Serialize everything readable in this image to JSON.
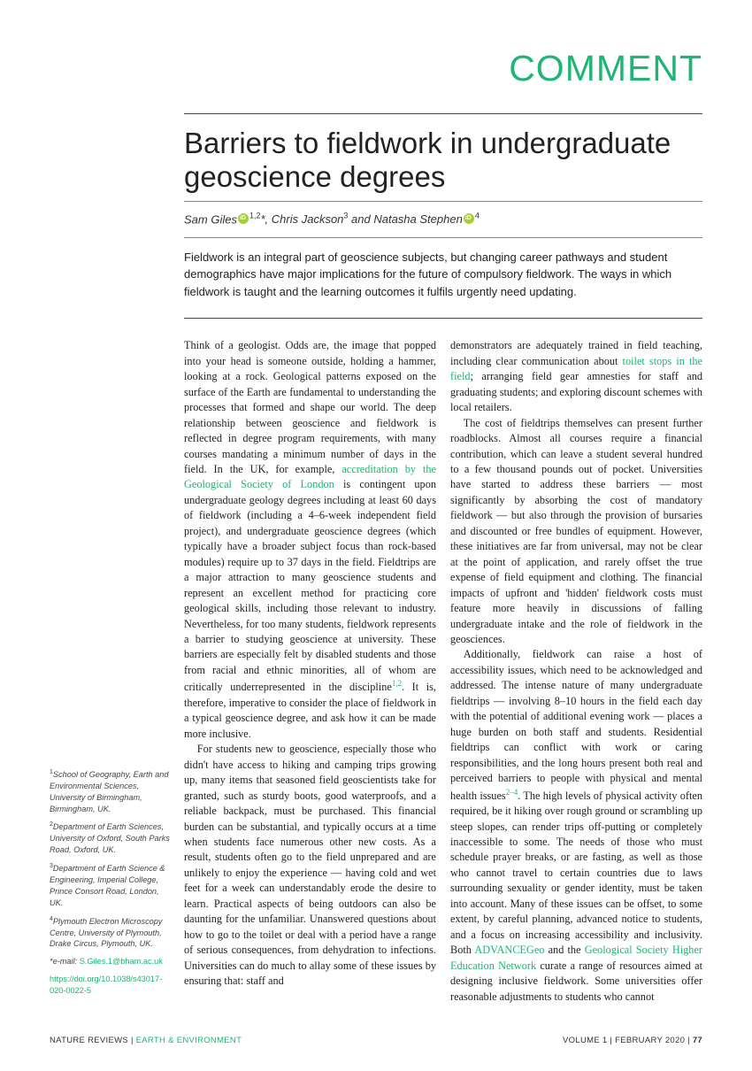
{
  "section_label": "COMMENT",
  "title": "Barriers to fieldwork in undergraduate geoscience degrees",
  "authors_html": "Sam Giles|ORCID|<sup>1,2</sup>*, Chris Jackson<sup>3</sup> and Natasha Stephen|ORCID|<sup>4</sup>",
  "abstract": "Fieldwork is an integral part of geoscience subjects, but changing career pathways and student demographics have major implications for the future of compulsory fieldwork. The ways in which fieldwork is taught and the learning outcomes it fulfils urgently need updating.",
  "col1": {
    "p1_a": "Think of a geologist. Odds are, the image that popped into your head is someone outside, holding a hammer, looking at a rock. Geological patterns exposed on the surface of the Earth are fundamental to understanding the processes that formed and shape our world. The deep relationship between geoscience and fieldwork is reflected in degree program requirements, with many courses mandating a minimum number of days in the field. In the UK, for example, ",
    "link1": "accreditation by the Geological Society of London",
    "p1_b": " is contingent upon undergraduate geology degrees including at least 60 days of fieldwork (including a 4–6-week independent field project), and undergraduate geoscience degrees (which typically have a broader subject focus than rock-based modules) require up to 37 days in the field. Fieldtrips are a major attraction to many geoscience students and represent an excellent method for practicing core geological skills, including those relevant to industry. Nevertheless, for too many students, fieldwork represents a barrier to studying geoscience at university. These barriers are especially felt by disabled students and those from racial and ethnic minorities, all of whom are critically underrepresented in the discipline",
    "ref1": "1,2",
    "p1_c": ". It is, therefore, imperative to consider the place of fieldwork in a typical geoscience degree, and ask how it can be made more inclusive.",
    "p2": "For students new to geoscience, especially those who didn't have access to hiking and camping trips growing up, many items that seasoned field geoscientists take for granted, such as sturdy boots, good waterproofs, and a reliable backpack, must be purchased. This financial burden can be substantial, and typically occurs at a time when students face numerous other new costs. As a result, students often go to the field unprepared and are unlikely to enjoy the experience — having cold and wet feet for a week can understandably erode the desire to learn. Practical aspects of being outdoors can also be daunting for the unfamiliar. Unanswered questions about how to go to the toilet or deal with a period have a range of serious consequences, from dehydration to infections. Universities can do much to allay some of these issues by ensuring that: staff and"
  },
  "col2": {
    "p1_a": "demonstrators are adequately trained in field teaching, including clear communication about ",
    "link1": "toilet stops in the field",
    "p1_b": "; arranging field gear amnesties for staff and graduating students; and exploring discount schemes with local retailers.",
    "p2": "The cost of fieldtrips themselves can present further roadblocks. Almost all courses require a financial contribution, which can leave a student several hundred to a few thousand pounds out of pocket. Universities have started to address these barriers — most significantly by absorbing the cost of mandatory fieldwork — but also through the provision of bursaries and discounted or free bundles of equipment. However, these initiatives are far from universal, may not be clear at the point of application, and rarely offset the true expense of field equipment and clothing. The financial impacts of upfront and 'hidden' fieldwork costs must feature more heavily in discussions of falling undergraduate intake and the role of fieldwork in the geosciences.",
    "p3_a": "Additionally, fieldwork can raise a host of accessibility issues, which need to be acknowledged and addressed. The intense nature of many undergraduate fieldtrips — involving 8–10 hours in the field each day with the potential of additional evening work — places a huge burden on both staff and students. Residential fieldtrips can conflict with work or caring responsibilities, and the long hours present both real and perceived barriers to people with physical and mental health issues",
    "ref1": "2–4",
    "p3_b": ". The high levels of physical activity often required, be it hiking over rough ground or scrambling up steep slopes, can render trips off-putting or completely inaccessible to some. The needs of those who must schedule prayer breaks, or are fasting, as well as those who cannot travel to certain countries due to laws surrounding sexuality or gender identity, must be taken into account. Many of these issues can be offset, to some extent, by careful planning, advanced notice to students, and a focus on increasing accessibility and inclusivity. Both ",
    "link2": "ADVANCEGeo",
    "p3_c": " and the ",
    "link3": "Geological Society Higher Education Network",
    "p3_d": " curate a range of resources aimed at designing inclusive fieldwork. Some universities offer reasonable adjustments to students who cannot"
  },
  "affiliations": {
    "a1": "School of Geography, Earth and Environmental Sciences, University of Birmingham, Birmingham, UK.",
    "a2": "Department of Earth Sciences, University of Oxford, South Parks Road, Oxford, UK.",
    "a3": "Department of Earth Science & Engineering, Imperial College, Prince Consort Road, London, UK.",
    "a4": "Plymouth Electron Microscopy Centre, University of Plymouth, Drake Circus, Plymouth, UK.",
    "email_label": "*e-mail: ",
    "email": "S.Giles.1@bham.ac.uk",
    "doi": "https://doi.org/10.1038/s43017-020-0022-5"
  },
  "footer": {
    "journal": "NATURE REVIEWS | ",
    "section": "EARTH & ENVIRONMENT",
    "issue": "VOLUME 1 | FEBRUARY 2020 | ",
    "page": "77"
  }
}
